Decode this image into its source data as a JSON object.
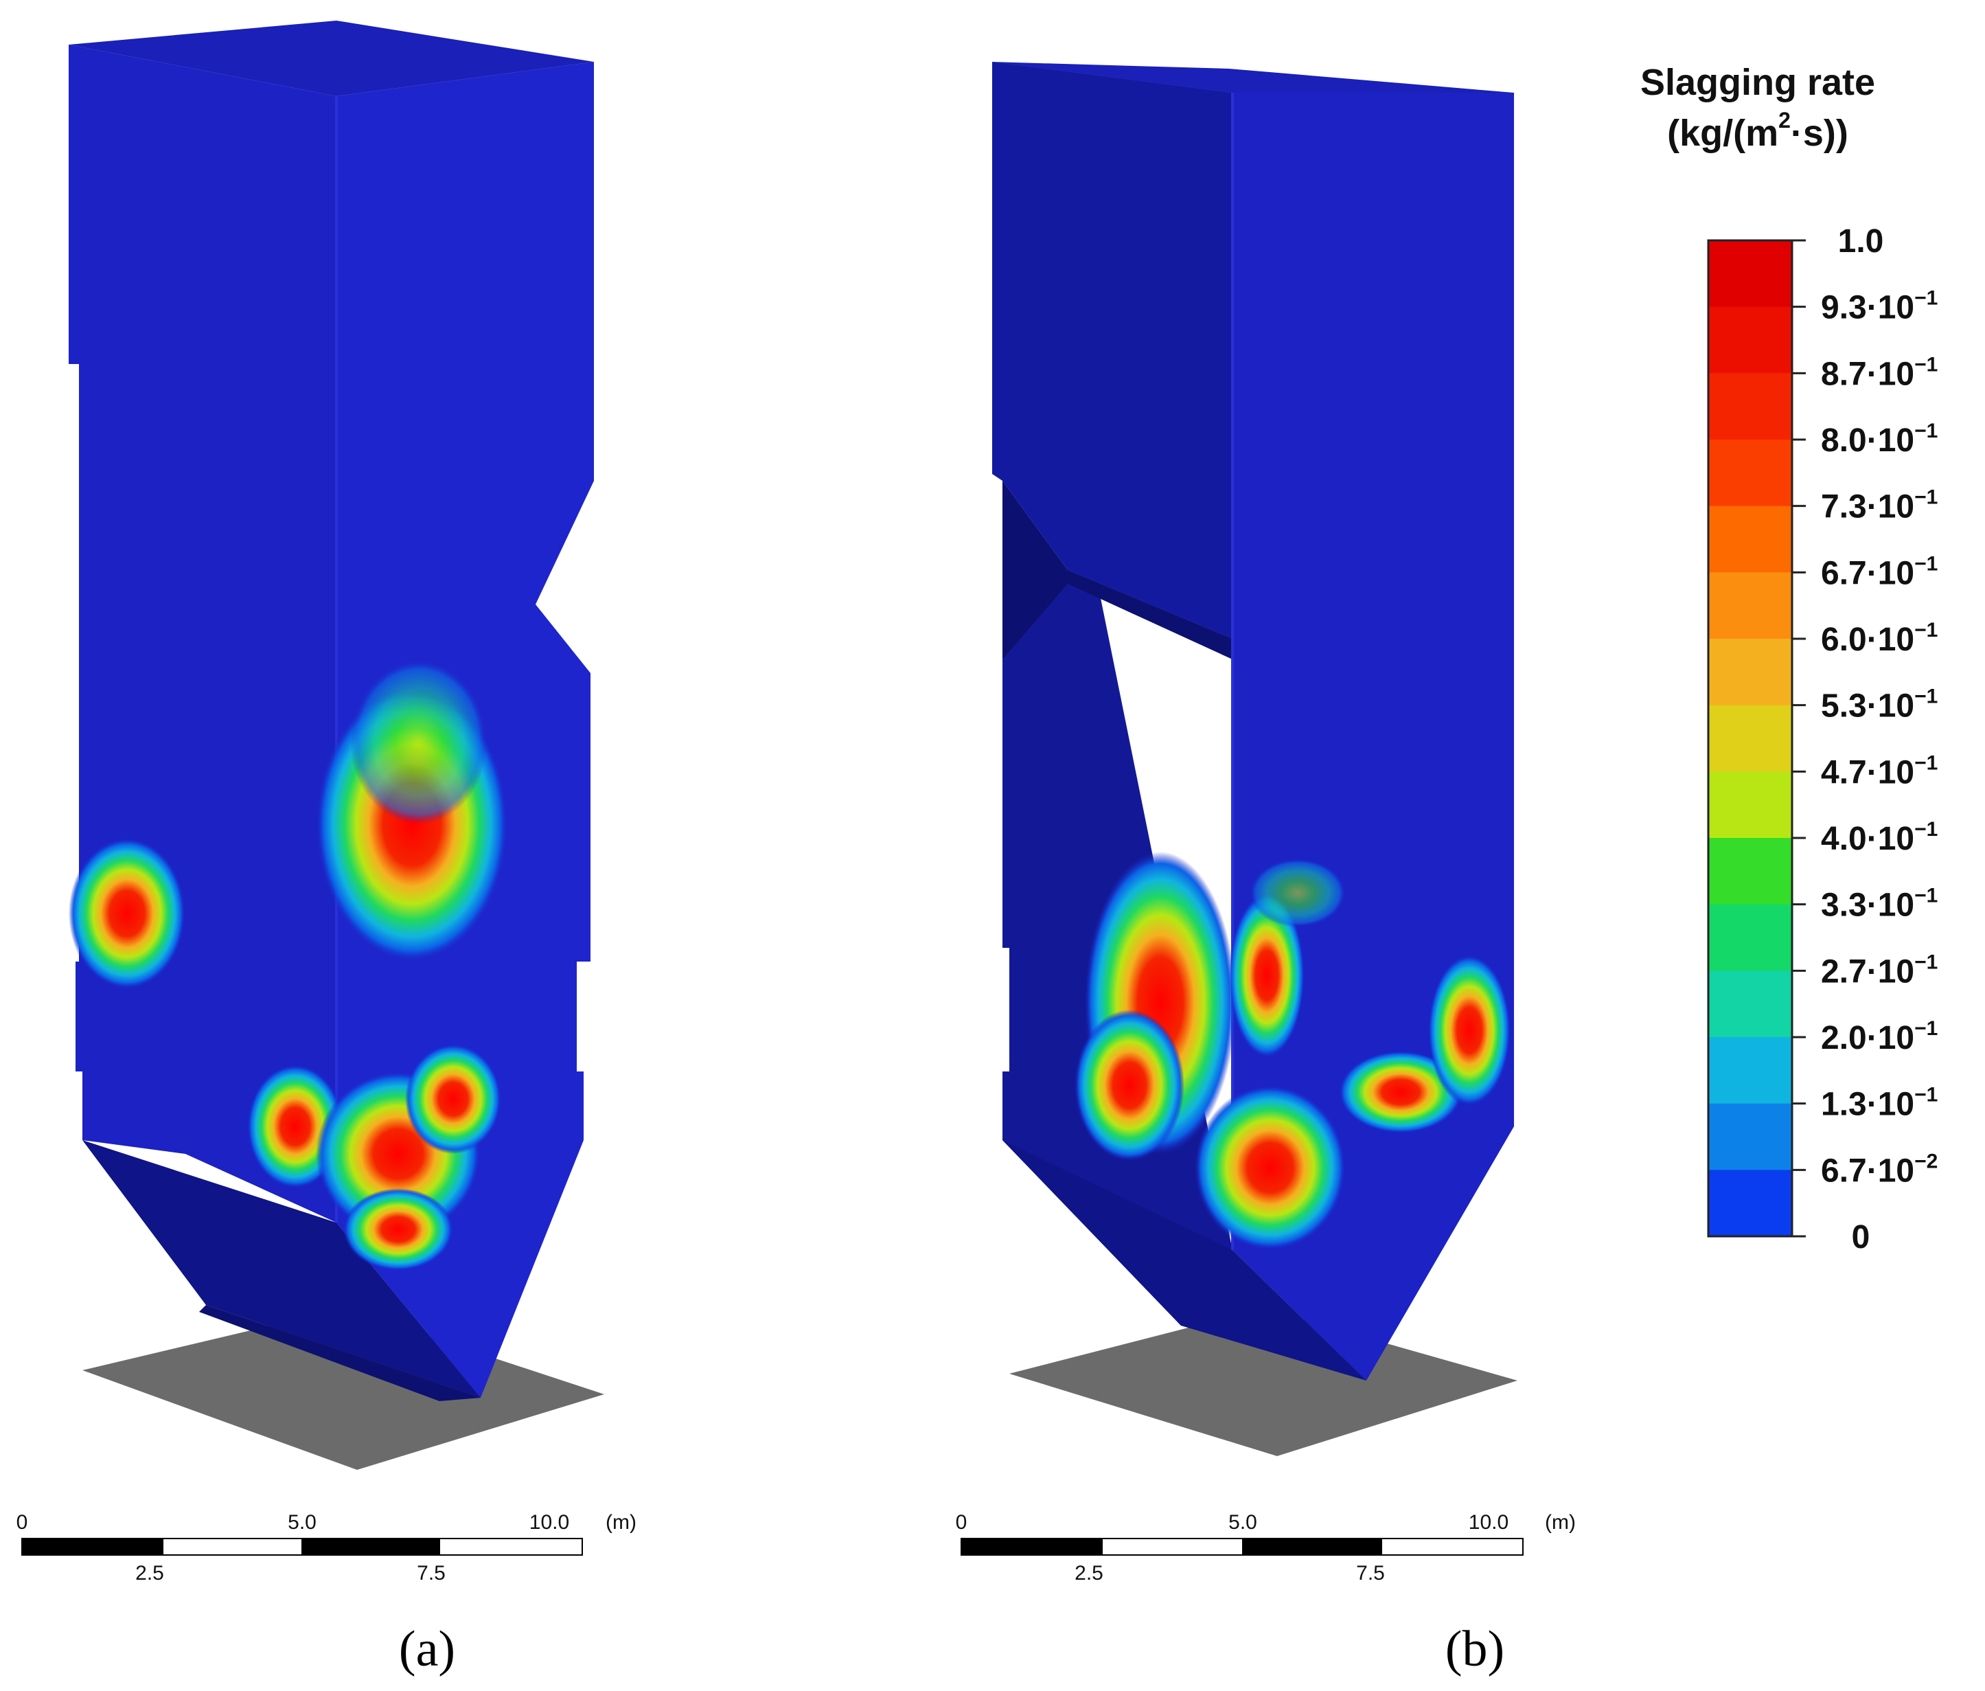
{
  "panels": [
    {
      "label": "(a)",
      "scale": {
        "top_ticks": [
          "0",
          "5.0",
          "10.0"
        ],
        "bottom_ticks": [
          "2.5",
          "7.5"
        ],
        "unit": "(m)"
      }
    },
    {
      "label": "(b)",
      "scale": {
        "top_ticks": [
          "0",
          "5.0",
          "10.0"
        ],
        "bottom_ticks": [
          "2.5",
          "7.5"
        ],
        "unit": "(m)"
      }
    }
  ],
  "legend": {
    "title_line1": "Slagging rate",
    "title_line2_pre": "(kg/(m",
    "title_line2_sup": "2",
    "title_line2_post": "·s))",
    "ticks": [
      {
        "mant": "1.0",
        "exp": ""
      },
      {
        "mant": "9.3·10",
        "exp": "−1"
      },
      {
        "mant": "8.7·10",
        "exp": "−1"
      },
      {
        "mant": "8.0·10",
        "exp": "−1"
      },
      {
        "mant": "7.3·10",
        "exp": "−1"
      },
      {
        "mant": "6.7·10",
        "exp": "−1"
      },
      {
        "mant": "6.0·10",
        "exp": "−1"
      },
      {
        "mant": "5.3·10",
        "exp": "−1"
      },
      {
        "mant": "4.7·10",
        "exp": "−1"
      },
      {
        "mant": "4.0·10",
        "exp": "−1"
      },
      {
        "mant": "3.3·10",
        "exp": "−1"
      },
      {
        "mant": "2.7·10",
        "exp": "−1"
      },
      {
        "mant": "2.0·10",
        "exp": "−1"
      },
      {
        "mant": "1.3·10",
        "exp": "−1"
      },
      {
        "mant": "6.7·10",
        "exp": "−2"
      },
      {
        "mant": "0",
        "exp": ""
      }
    ],
    "colors": [
      "#e00000",
      "#ec0f00",
      "#f52400",
      "#fa3e00",
      "#fc6a00",
      "#fb8e0f",
      "#f5b020",
      "#e0d01a",
      "#b8e614",
      "#35dc2a",
      "#14d868",
      "#12d4a4",
      "#10b4e0",
      "#0c82e8",
      "#0a3cf0"
    ]
  },
  "colors": {
    "furnace_front": "#1c22c4",
    "furnace_side": "#141a9a",
    "furnace_dark": "#0e137a",
    "shadow": "#6b6b6b"
  }
}
